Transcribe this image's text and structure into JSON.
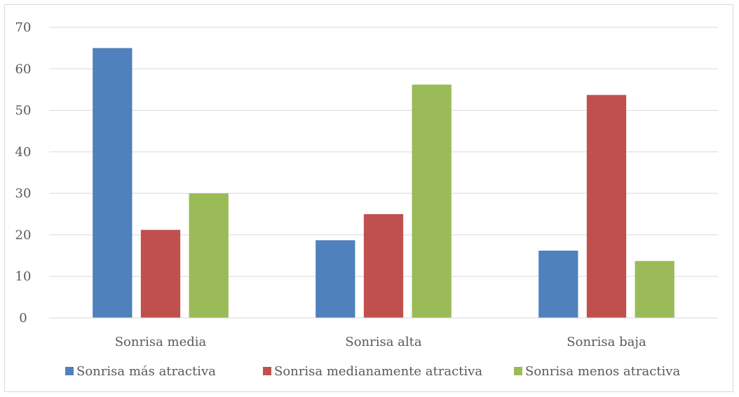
{
  "chart_data": {
    "type": "bar",
    "title": "",
    "xlabel": "",
    "ylabel": "",
    "categories": [
      "Sonrisa media",
      "Sonrisa alta",
      "Sonrisa baja"
    ],
    "series": [
      {
        "name": "Sonrisa más atractiva",
        "color": "#4f81bd",
        "values": [
          65,
          18.7,
          16.2
        ]
      },
      {
        "name": "Sonrisa medianamente atractiva",
        "color": "#c0504d",
        "values": [
          21.2,
          25,
          53.7
        ]
      },
      {
        "name": "Sonrisa menos atractiva",
        "color": "#9bbb59",
        "values": [
          30,
          56.2,
          13.7
        ]
      }
    ],
    "ylim": [
      0,
      70
    ],
    "yticks": [
      "0",
      "10",
      "20",
      "30",
      "40",
      "50",
      "60",
      "70"
    ],
    "grid": true,
    "legend_position": "bottom"
  }
}
